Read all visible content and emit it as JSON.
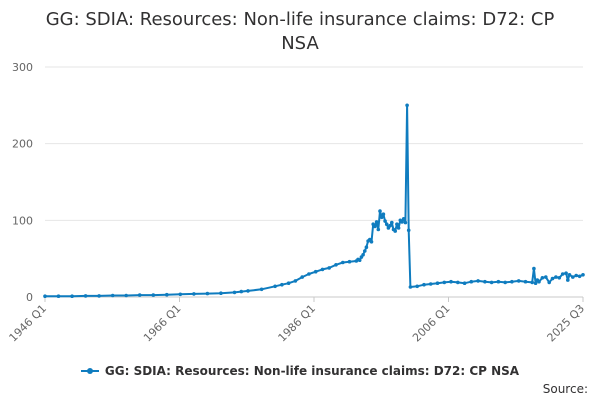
{
  "chart_data": {
    "type": "line",
    "title": "GG: SDIA: Resources: Non-life insurance claims: D72: CP NSA",
    "title_line1": "GG: SDIA: Resources: Non-life insurance claims: D72: CP",
    "title_line2": "NSA",
    "xlabel": "",
    "ylabel": "",
    "ylim": [
      0,
      300
    ],
    "y_ticks": [
      0,
      100,
      200,
      300
    ],
    "x_tick_labels": [
      "1946 Q1",
      "1966 Q1",
      "1986 Q1",
      "2006 Q1",
      "2025 Q3"
    ],
    "x_range": [
      1946.0,
      2025.5
    ],
    "grid": true,
    "legend_position": "bottom",
    "color": "#0f7cbf",
    "series": [
      {
        "name": "GG: SDIA: Resources: Non-life insurance claims: D72: CP NSA",
        "x": [
          1946.0,
          1948.0,
          1950.0,
          1952.0,
          1954.0,
          1956.0,
          1958.0,
          1960.0,
          1962.0,
          1964.0,
          1966.0,
          1968.0,
          1970.0,
          1972.0,
          1974.0,
          1975.0,
          1976.0,
          1978.0,
          1980.0,
          1981.0,
          1982.0,
          1983.0,
          1984.0,
          1985.0,
          1986.0,
          1987.0,
          1988.0,
          1989.0,
          1990.0,
          1991.0,
          1992.0,
          1992.25,
          1992.5,
          1992.75,
          1993.0,
          1993.25,
          1993.5,
          1993.75,
          1994.0,
          1994.25,
          1994.5,
          1994.75,
          1995.0,
          1995.25,
          1995.5,
          1995.75,
          1996.0,
          1996.25,
          1996.5,
          1996.75,
          1997.0,
          1997.25,
          1997.5,
          1997.75,
          1998.0,
          1998.25,
          1998.5,
          1998.75,
          1999.0,
          1999.25,
          1999.5,
          1999.75,
          2000.0,
          2001.0,
          2002.0,
          2003.0,
          2004.0,
          2005.0,
          2006.0,
          2007.0,
          2008.0,
          2009.0,
          2010.0,
          2011.0,
          2012.0,
          2013.0,
          2014.0,
          2015.0,
          2016.0,
          2017.0,
          2018.0,
          2018.25,
          2018.5,
          2018.75,
          2019.0,
          2019.5,
          2020.0,
          2020.5,
          2021.0,
          2021.5,
          2022.0,
          2022.5,
          2023.0,
          2023.25,
          2023.5,
          2024.0,
          2024.5,
          2025.0,
          2025.5
        ],
        "values": [
          1,
          1,
          1,
          1.5,
          1.5,
          2,
          2,
          2.5,
          2.5,
          3,
          3.5,
          4,
          4.5,
          5,
          6,
          7,
          8,
          10,
          14,
          16,
          18,
          21,
          26,
          30,
          33,
          36,
          38,
          42,
          45,
          46,
          47,
          49,
          48,
          52,
          55,
          60,
          65,
          73,
          75,
          72,
          95,
          92,
          98,
          88,
          112,
          104,
          108,
          99,
          95,
          90,
          93,
          97,
          88,
          86,
          95,
          90,
          100,
          98,
          102,
          97,
          250,
          87,
          13,
          14,
          16,
          17,
          18,
          19,
          20,
          19,
          18,
          20,
          21,
          20,
          19,
          20,
          19,
          20,
          21,
          20,
          19,
          37,
          18,
          22,
          20,
          25,
          26,
          19,
          24,
          26,
          25,
          30,
          31,
          22,
          29,
          26,
          28,
          27,
          29
        ]
      }
    ]
  },
  "legend": {
    "label": "GG: SDIA: Resources: Non-life insurance claims: D72: CP NSA"
  },
  "source": {
    "label": "Source:"
  }
}
